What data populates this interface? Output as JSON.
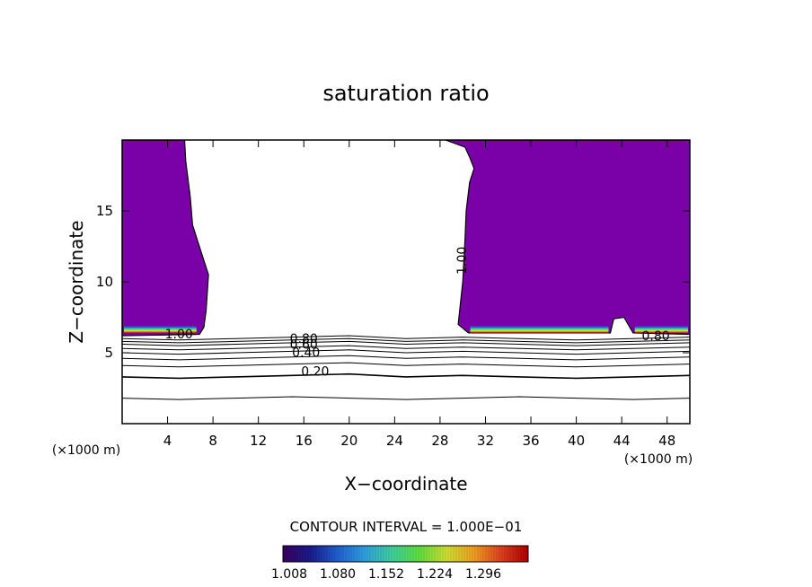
{
  "chart_data": {
    "type": "heatmap",
    "title": "saturation ratio",
    "xlabel": "X−coordinate",
    "ylabel": "Z−coordinate",
    "x_unit_left": "(×1000 m)",
    "x_unit_right": "(×1000 m)",
    "xlim": [
      0,
      50
    ],
    "ylim": [
      0,
      20
    ],
    "x_ticks": [
      4,
      8,
      12,
      16,
      20,
      24,
      28,
      32,
      36,
      40,
      44,
      48
    ],
    "y_ticks": [
      5,
      10,
      15
    ],
    "contour_interval_text": "CONTOUR INTERVAL = 1.000E−01",
    "contour_labels": [
      {
        "text": "1.00",
        "x": 5.0,
        "z": 6.0
      },
      {
        "text": "1.00",
        "x": 30.0,
        "z": 11.5
      },
      {
        "text": "0.80",
        "x": 16.0,
        "z": 5.7
      },
      {
        "text": "0.60",
        "x": 16.0,
        "z": 5.3
      },
      {
        "text": "0.40",
        "x": 16.2,
        "z": 4.7
      },
      {
        "text": "0.20",
        "x": 17.0,
        "z": 3.4
      },
      {
        "text": "0.80",
        "x": 47.0,
        "z": 5.9
      }
    ],
    "contour_levels": [
      {
        "level": 0.1,
        "z": [
          1.8,
          1.7,
          1.8,
          1.9,
          1.8,
          1.7,
          1.8,
          1.9,
          1.8,
          1.7,
          1.8
        ]
      },
      {
        "level": 0.2,
        "z": [
          3.3,
          3.2,
          3.3,
          3.4,
          3.5,
          3.3,
          3.4,
          3.3,
          3.2,
          3.3,
          3.4
        ]
      },
      {
        "level": 0.3,
        "z": [
          4.1,
          4.0,
          4.1,
          4.2,
          4.3,
          4.1,
          4.2,
          4.1,
          4.0,
          4.1,
          4.2
        ]
      },
      {
        "level": 0.4,
        "z": [
          4.6,
          4.5,
          4.6,
          4.7,
          4.8,
          4.6,
          4.7,
          4.6,
          4.5,
          4.6,
          4.7
        ]
      },
      {
        "level": 0.5,
        "z": [
          5.0,
          4.9,
          5.0,
          5.1,
          5.2,
          5.0,
          5.1,
          5.0,
          4.9,
          5.0,
          5.1
        ]
      },
      {
        "level": 0.6,
        "z": [
          5.3,
          5.2,
          5.3,
          5.4,
          5.5,
          5.3,
          5.4,
          5.3,
          5.2,
          5.3,
          5.4
        ]
      },
      {
        "level": 0.7,
        "z": [
          5.6,
          5.5,
          5.6,
          5.7,
          5.8,
          5.6,
          5.7,
          5.6,
          5.5,
          5.6,
          5.7
        ]
      },
      {
        "level": 0.8,
        "z": [
          5.8,
          5.7,
          5.8,
          5.9,
          6.0,
          5.8,
          5.9,
          5.8,
          5.7,
          5.8,
          5.9
        ]
      },
      {
        "level": 0.9,
        "z": [
          6.0,
          5.9,
          6.0,
          6.1,
          6.2,
          6.0,
          6.1,
          6.0,
          5.9,
          6.0,
          6.1
        ]
      }
    ],
    "supersaturated_regions": [
      {
        "name": "left",
        "color": "#7a00a8",
        "boundary": [
          [
            0,
            20
          ],
          [
            5.5,
            20
          ],
          [
            5.6,
            18.5
          ],
          [
            6.0,
            16
          ],
          [
            6.2,
            14
          ],
          [
            7.0,
            12
          ],
          [
            7.6,
            10.5
          ],
          [
            7.4,
            8
          ],
          [
            7.2,
            6.8
          ],
          [
            6.8,
            6.3
          ],
          [
            0,
            6.2
          ]
        ]
      },
      {
        "name": "right",
        "color": "#7a00a8",
        "boundary": [
          [
            28.5,
            20
          ],
          [
            50,
            20
          ],
          [
            50,
            6.3
          ],
          [
            45,
            6.4
          ],
          [
            44.2,
            7.5
          ],
          [
            43.3,
            7.4
          ],
          [
            43.0,
            6.4
          ],
          [
            30.5,
            6.4
          ],
          [
            29.6,
            7.0
          ],
          [
            30.0,
            10
          ],
          [
            30.2,
            13
          ],
          [
            30.3,
            15
          ],
          [
            30.6,
            17
          ],
          [
            31.0,
            18
          ],
          [
            30.6,
            18.8
          ],
          [
            30.2,
            19.5
          ],
          [
            29.5,
            19.7
          ],
          [
            28.5,
            20
          ]
        ]
      }
    ],
    "colorbar": {
      "ticks": [
        "1.008",
        "1.080",
        "1.152",
        "1.224",
        "1.296"
      ],
      "colors": [
        "#3a0060",
        "#1a1a8c",
        "#2060d0",
        "#30a0e0",
        "#40d0a0",
        "#60e040",
        "#d0e030",
        "#f0a020",
        "#e04020",
        "#b00000"
      ]
    }
  }
}
